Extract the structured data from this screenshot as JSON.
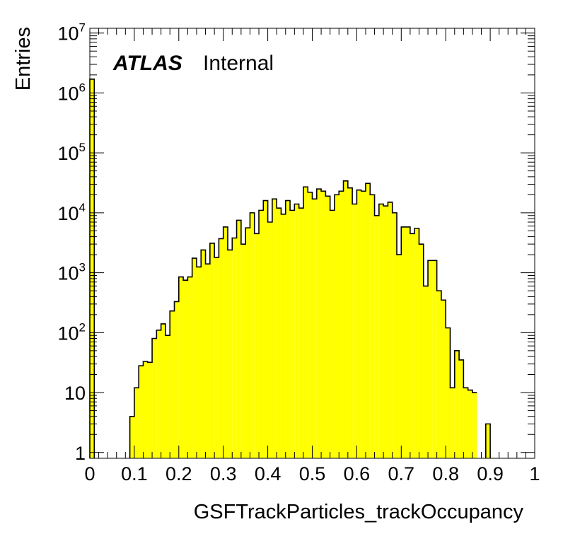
{
  "chart_data": {
    "type": "bar",
    "histogram": true,
    "xlabel": "GSFTrackParticles_trackOccupancy",
    "ylabel": "Entries",
    "label_bold_italic": "ATLAS",
    "label_normal": "Internal",
    "xlim": [
      0,
      1
    ],
    "ylim": [
      0.8,
      12000000
    ],
    "ylog": true,
    "fill_color": "#ffff00",
    "line_color": "#000000",
    "x_tick_labels": [
      "0",
      "0.1",
      "0.2",
      "0.3",
      "0.4",
      "0.5",
      "0.6",
      "0.7",
      "0.8",
      "0.9",
      "1"
    ],
    "y_tick_labels": [
      {
        "base": "1",
        "exp": ""
      },
      {
        "base": "10",
        "exp": ""
      },
      {
        "base": "10",
        "exp": "2"
      },
      {
        "base": "10",
        "exp": "3"
      },
      {
        "base": "10",
        "exp": "4"
      },
      {
        "base": "10",
        "exp": "5"
      },
      {
        "base": "10",
        "exp": "6"
      },
      {
        "base": "10",
        "exp": "7"
      }
    ],
    "bin_width": 0.01,
    "bin_low_edges": [
      0,
      0.09,
      0.1,
      0.11,
      0.12,
      0.13,
      0.14,
      0.15,
      0.16,
      0.17,
      0.18,
      0.19,
      0.2,
      0.21,
      0.22,
      0.23,
      0.24,
      0.25,
      0.26,
      0.27,
      0.28,
      0.29,
      0.3,
      0.31,
      0.32,
      0.33,
      0.34,
      0.35,
      0.36,
      0.37,
      0.38,
      0.39,
      0.4,
      0.41,
      0.42,
      0.43,
      0.44,
      0.45,
      0.46,
      0.47,
      0.48,
      0.49,
      0.5,
      0.51,
      0.52,
      0.53,
      0.54,
      0.55,
      0.56,
      0.57,
      0.58,
      0.59,
      0.6,
      0.61,
      0.62,
      0.63,
      0.64,
      0.65,
      0.66,
      0.67,
      0.68,
      0.69,
      0.7,
      0.71,
      0.72,
      0.73,
      0.74,
      0.75,
      0.76,
      0.77,
      0.78,
      0.79,
      0.8,
      0.81,
      0.82,
      0.83,
      0.84,
      0.85,
      0.86,
      0.87,
      0.88,
      0.89,
      0.9,
      0.91
    ],
    "values": [
      1700000,
      4,
      12,
      28,
      33,
      32,
      80,
      110,
      140,
      90,
      230,
      330,
      850,
      750,
      850,
      1750,
      1250,
      2400,
      1400,
      3100,
      1800,
      3700,
      5800,
      2400,
      3800,
      7500,
      3000,
      5600,
      10000,
      4500,
      11000,
      16000,
      7000,
      17000,
      12000,
      9500,
      16000,
      11000,
      14000,
      12000,
      27000,
      22000,
      17000,
      25000,
      23000,
      19000,
      11000,
      20000,
      23000,
      34000,
      26000,
      14000,
      24000,
      23000,
      31000,
      20000,
      9000,
      14000,
      13000,
      15000,
      10000,
      2000,
      5800,
      5800,
      4500,
      5500,
      3000,
      600,
      1600,
      1600,
      500,
      350,
      120,
      12,
      50,
      35,
      12,
      11,
      10,
      0,
      0,
      3
    ]
  }
}
